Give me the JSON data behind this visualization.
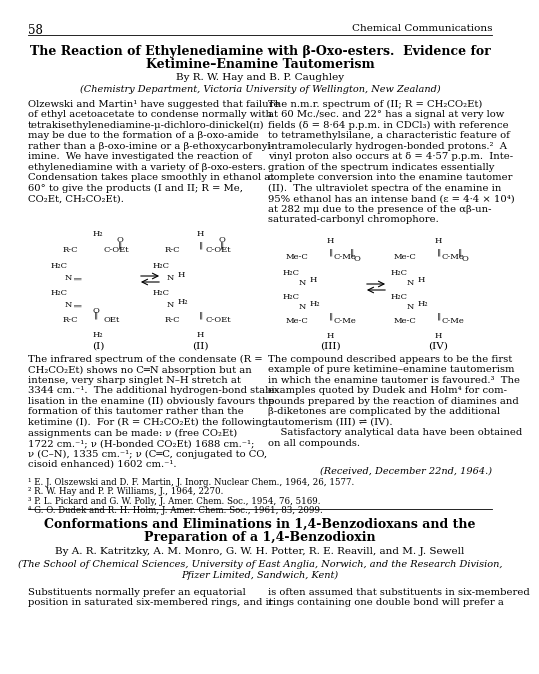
{
  "page_num": "58",
  "journal": "Chemical Communications",
  "title_line1": "The Reaction of Ethylenediamine with β-Oxo-esters.  Evidence for",
  "title_line2": "Ketimine–Enamine Tautomerism",
  "authors": "By R. W. Hay and B. P. Caughley",
  "affiliation": "(Chemistry Department, Victoria University of Wellington, New Zealand)",
  "lp1": [
    "Olzewski and Martin¹ have suggested that failure",
    "of ethyl acetoacetate to condense normally with",
    "tetrakisethylenediamine-μ-dichloro-dinickel(ɪɪ)",
    "may be due to the formation of a β-oxo-amide",
    "rather than a β-oxo-imine or a β-ethoxycarbonyl-",
    "imine.  We have investigated the reaction of",
    "ethylenediamine with a variety of β-oxo-esters.",
    "Condensation takes place smoothly in ethanol at",
    "60° to give the products (I and II; R = Me,",
    "CO₂Et, CH₂CO₂Et)."
  ],
  "rp2": [
    "The n.m.r. spectrum of (II; R = CH₂CO₂Et)",
    "at 60 Mc./sec. and 22° has a signal at very low",
    "fields (δ = 8·64 p.p.m. in CDCl₃) with reference",
    "to tetramethylsilane, a characteristic feature of",
    "intramolecularly hydrogen-bonded protons.²  A",
    "vinyl proton also occurs at δ = 4·57 p.p.m.  Inte-",
    "gration of the spectrum indicates essentially",
    "complete conversion into the enamine tautomer",
    "(II).  The ultraviolet spectra of the enamine in",
    "95% ethanol has an intense band (ε = 4·4 × 10⁴)",
    "at 282 mμ due to the presence of the αβ-un-",
    "saturated-carbonyl chromophore."
  ],
  "lp3": [
    "The infrared spectrum of the condensate (R =",
    "CH₂CO₂Et) shows no C═N absorption but an",
    "intense, very sharp singlet N–H stretch at",
    "3344 cm.⁻¹.  The additional hydrogen-bond stabi-",
    "lisation in the enamine (II) obviously favours the",
    "formation of this tautomer rather than the",
    "ketimine (I).  For (R = CH₂CO₂Et) the following",
    "assignments can be made: ν (free CO₂Et)",
    "1722 cm.⁻¹; ν (H-bonded CO₂Et) 1688 cm.⁻¹;",
    "ν (C–N), 1335 cm.⁻¹; ν (C═C, conjugated to CO,",
    "cisoid enhanced) 1602 cm.⁻¹."
  ],
  "rp4": [
    "The compound described appears to be the first",
    "example of pure ketimine–enamine tautomerism",
    "in which the enamine tautomer is favoured.³  The",
    "examples quoted by Dudek and Holm⁴ for com-",
    "pounds prepared by the reaction of diamines and",
    "β-diketones are complicated by the additional",
    "tautomerism (III) ⇌ (IV).",
    "    Satisfactory analytical data have been obtained",
    "on all compounds."
  ],
  "received": "(Received, December 22nd, 1964.)",
  "refs": [
    "¹ E. J. Olszewski and D. F. Martin, J. Inorg. Nuclear Chem., 1964, 26, 1577.",
    "² R. W. Hay and P. P. Williams, J., 1964, 2270.",
    "³ P. L. Pickard and G. W. Polly, J. Amer. Chem. Soc., 1954, 76, 5169.",
    "⁴ G. O. Dudek and R. H. Holm, J. Amer. Chem. Soc., 1961, 83, 2099."
  ],
  "title2_line1": "Conformations and Eliminations in 1,4-Benzodioxans and the",
  "title2_line2": "Preparation of a 1,4-Benzodioxin",
  "authors2": "By A. R. Katritzky, A. M. Monro, G. W. H. Potter, R. E. Reavill, and M. J. Sewell",
  "affil2_line1": "(The School of Chemical Sciences, University of East Anglia, Norwich, and the Research Division,",
  "affil2_line2": "Pfizer Limited, Sandwich, Kent)",
  "lp5": [
    "Substituents normally prefer an equatorial",
    "position in saturated six-membered rings, and it"
  ],
  "rp5": [
    "is often assumed that substituents in six-membered",
    "rings containing one double bond will prefer a"
  ]
}
